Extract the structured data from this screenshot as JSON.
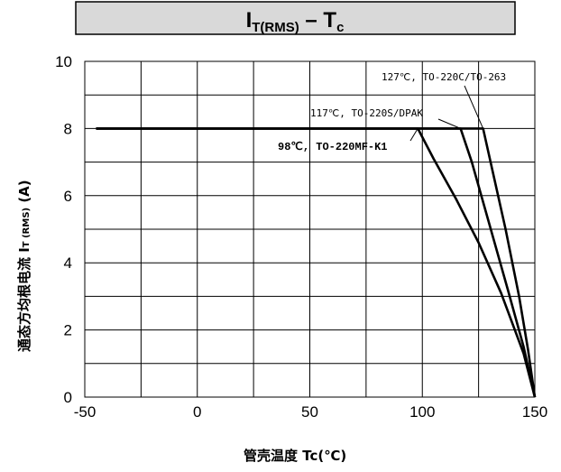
{
  "title": {
    "main": "I",
    "subscript": "T(RMS)",
    "dash": " – T",
    "subscript2": "c"
  },
  "chart_data": {
    "type": "line",
    "xlabel": "管壳温度 Tc(℃)",
    "ylabel": "通态方均根电流 I",
    "ylabel_sub": "T (RMS)",
    "ylabel_unit": " (A)",
    "xlim": [
      -50,
      150
    ],
    "ylim": [
      0,
      10
    ],
    "x_ticks": [
      -50,
      0,
      50,
      100,
      150
    ],
    "y_ticks": [
      0,
      2,
      4,
      6,
      8,
      10
    ],
    "grid": true,
    "series": [
      {
        "name": "98℃, TO-220MF-K1",
        "x": [
          -45,
          98,
          105,
          115,
          125,
          135,
          145,
          150
        ],
        "y": [
          8,
          8,
          7.1,
          5.9,
          4.6,
          3.1,
          1.3,
          0
        ]
      },
      {
        "name": "117℃, TO-220S/DPAK",
        "x": [
          -45,
          117,
          122,
          130,
          138,
          145,
          150
        ],
        "y": [
          8,
          8,
          7.0,
          5.1,
          3.2,
          1.5,
          0
        ]
      },
      {
        "name": "127℃, TO-220C/TO-263",
        "x": [
          -45,
          127,
          131,
          137,
          143,
          147,
          150
        ],
        "y": [
          8,
          8,
          6.8,
          5.0,
          3.0,
          1.4,
          0
        ]
      }
    ],
    "annotations": [
      {
        "text": "127℃, TO-220C/TO-263",
        "series": 2
      },
      {
        "text": "117℃, TO-220S/DPAK",
        "series": 1
      },
      {
        "text": "98℃, TO-220MF-K1",
        "series": 0
      }
    ]
  }
}
